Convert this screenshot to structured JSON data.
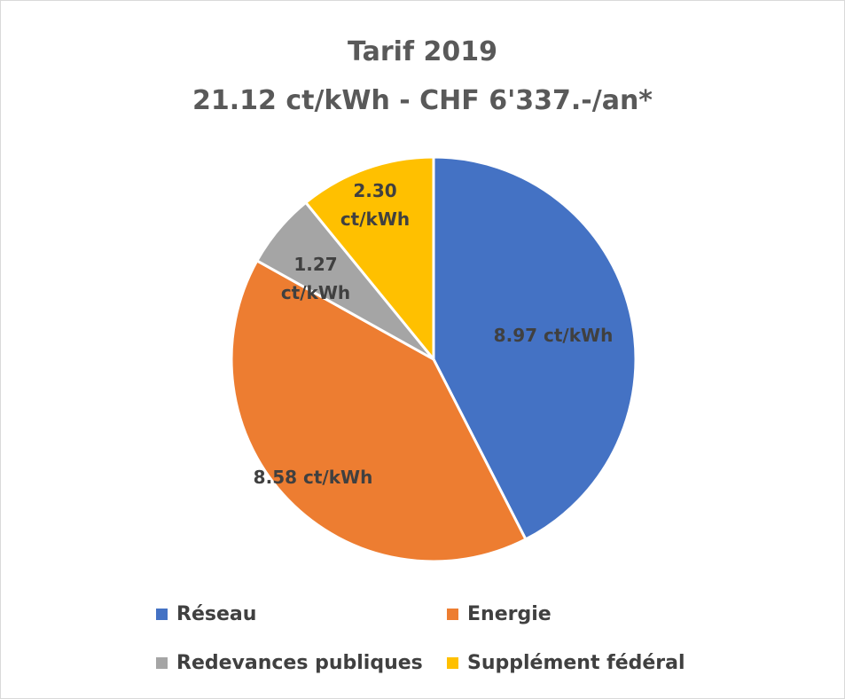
{
  "chart_data": {
    "type": "pie",
    "title": "Tarif 2019",
    "subtitle": "21.12 ct/kWh - CHF 6'337.-/an*",
    "categories": [
      "Réseau",
      "Energie",
      "Redevances publiques",
      "Supplément fédéral"
    ],
    "values": [
      8.97,
      8.58,
      1.27,
      2.3
    ],
    "value_labels": [
      "8.97 ct/kWh",
      "8.58 ct/kWh",
      "1.27 ct/kWh",
      "2.30 ct/kWh"
    ],
    "colors": [
      "#4472c4",
      "#ed7d31",
      "#a5a5a5",
      "#ffc000"
    ],
    "legend": "bottom"
  }
}
